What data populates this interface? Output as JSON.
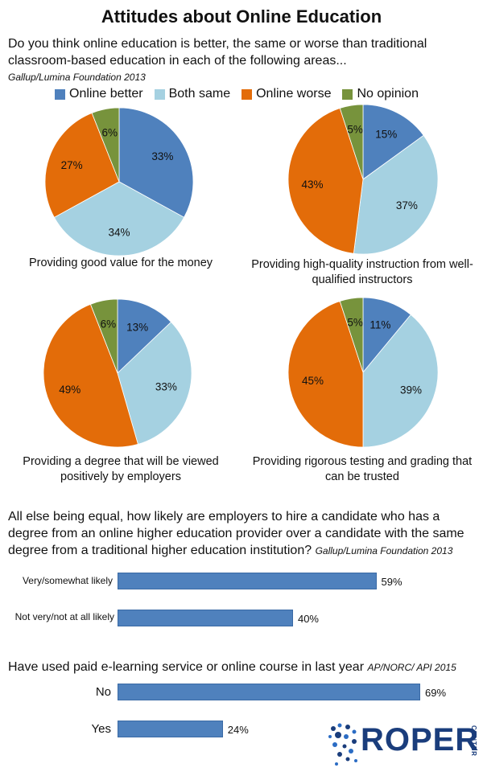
{
  "title": "Attitudes about Online Education",
  "intro": "Do you think online education is better, the same or worse than traditional classroom-based education in each of the following areas...",
  "source1": "Gallup/Lumina Foundation 2013",
  "legend": [
    {
      "label": "Online better",
      "color": "#4f81bd"
    },
    {
      "label": "Both same",
      "color": "#a5d1e1"
    },
    {
      "label": "Online  worse",
      "color": "#e36c09"
    },
    {
      "label": "No opinion",
      "color": "#77933c"
    }
  ],
  "chart_data": [
    {
      "type": "pie",
      "caption": "Providing good value for the money",
      "categories": [
        "Online better",
        "Both same",
        "Online  worse",
        "No opinion"
      ],
      "values": [
        33,
        34,
        27,
        6
      ],
      "labels": [
        "33%",
        "34%",
        "27%",
        "6%"
      ]
    },
    {
      "type": "pie",
      "caption": "Providing high-quality instruction from well-qualified instructors",
      "categories": [
        "Online better",
        "Both same",
        "Online  worse",
        "No opinion"
      ],
      "values": [
        15,
        37,
        43,
        5
      ],
      "labels": [
        "15%",
        "37%",
        "43%",
        "5%"
      ]
    },
    {
      "type": "pie",
      "caption": "Providing a degree that will be viewed positively by employers",
      "categories": [
        "Online better",
        "Both same",
        "Online  worse",
        "No opinion"
      ],
      "values": [
        13,
        33,
        49,
        6
      ],
      "labels": [
        "13%",
        "33%",
        "49%",
        "6%"
      ]
    },
    {
      "type": "pie",
      "caption": "Providing rigorous testing and grading that can be trusted",
      "categories": [
        "Online better",
        "Both same",
        "Online  worse",
        "No opinion"
      ],
      "values": [
        11,
        39,
        45,
        5
      ],
      "labels": [
        "11%",
        "39%",
        "45%",
        "5%"
      ]
    },
    {
      "type": "bar",
      "question": "All else being equal, how likely are employers to hire a candidate who has a degree from an online higher education provider over a candidate with the same degree from a traditional higher education institution?",
      "source": "Gallup/Lumina Foundation 2013",
      "categories": [
        "Very/somewhat likely",
        "Not very/not at all likely"
      ],
      "values": [
        59,
        40
      ],
      "labels": [
        "59%",
        "40%"
      ]
    },
    {
      "type": "bar",
      "question": "Have used paid e-learning service or online course in last year",
      "source": "AP/NORC/ API  2015",
      "categories": [
        "No",
        "Yes"
      ],
      "values": [
        69,
        24
      ],
      "labels": [
        "69%",
        "24%"
      ]
    }
  ],
  "logo": {
    "text": "ROPER",
    "sub": "CENTER"
  }
}
